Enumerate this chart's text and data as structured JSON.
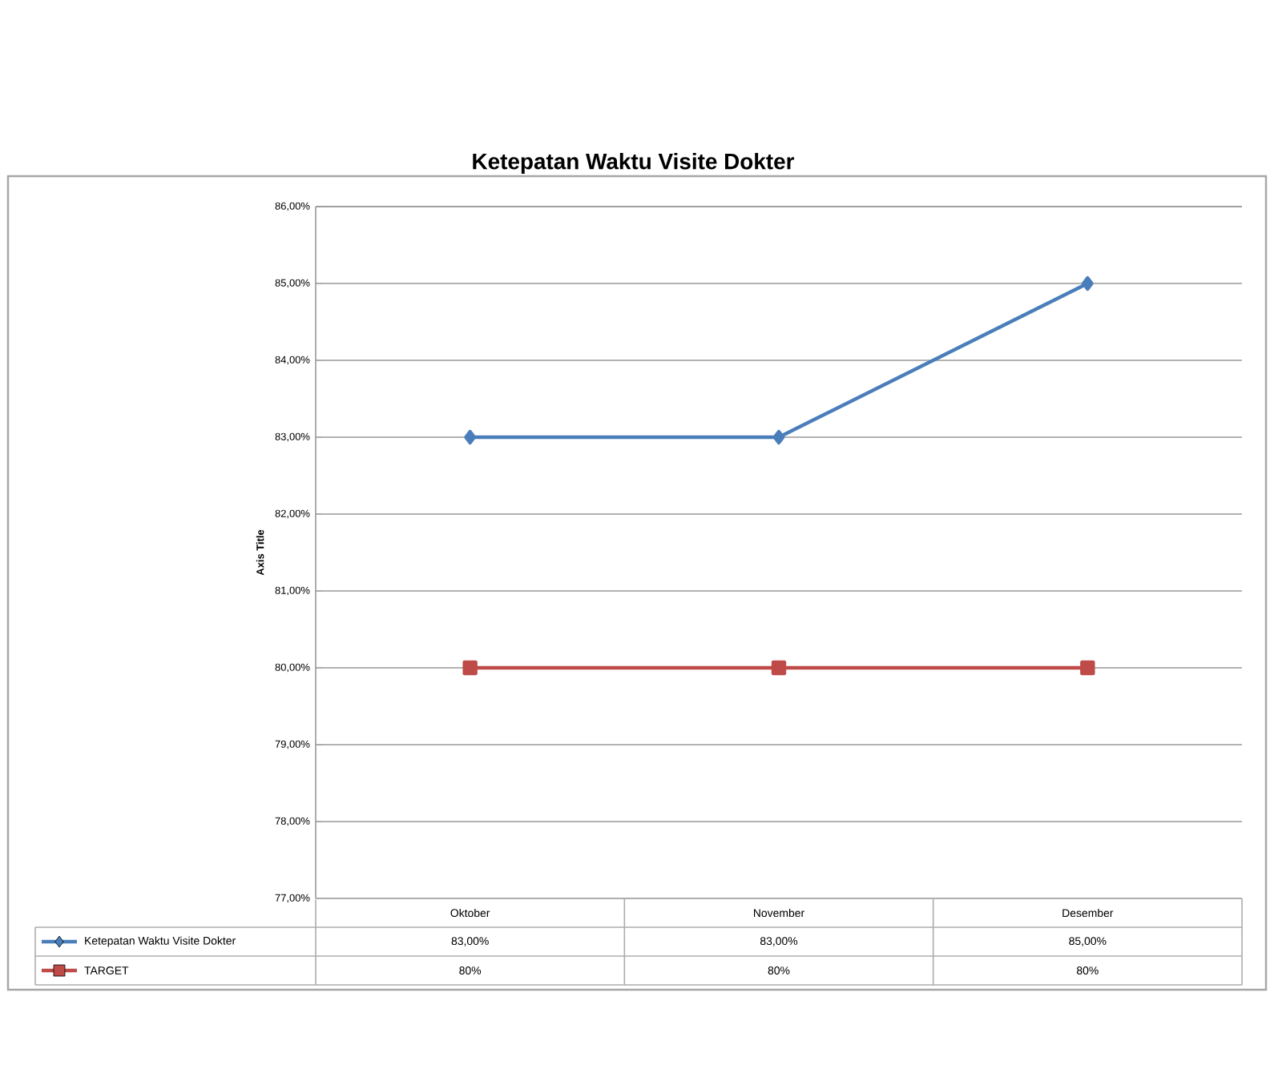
{
  "chart_data": {
    "type": "line",
    "title": "Ketepatan Waktu Visite Dokter",
    "ylabel": "Axis Title",
    "categories": [
      "Oktober",
      "November",
      "Desember"
    ],
    "series": [
      {
        "name": "Ketepatan Waktu Visite Dokter",
        "color": "#4a7ebb",
        "marker": "diamond",
        "values": [
          83,
          83,
          85
        ],
        "value_labels": [
          "83,00%",
          "83,00%",
          "85,00%"
        ]
      },
      {
        "name": "TARGET",
        "color": "#be4b48",
        "marker": "square",
        "values": [
          80,
          80,
          80
        ],
        "value_labels": [
          "80%",
          "80%",
          "80%"
        ]
      }
    ],
    "ylim": [
      77,
      86
    ],
    "yticks": [
      {
        "value": 77,
        "label": "77,00%"
      },
      {
        "value": 78,
        "label": "78,00%"
      },
      {
        "value": 79,
        "label": "79,00%"
      },
      {
        "value": 80,
        "label": "80,00%"
      },
      {
        "value": 81,
        "label": "81,00%"
      },
      {
        "value": 82,
        "label": "82,00%"
      },
      {
        "value": 83,
        "label": "83,00%"
      },
      {
        "value": 84,
        "label": "84,00%"
      },
      {
        "value": 85,
        "label": "85,00%"
      },
      {
        "value": 86,
        "label": "86,00%"
      }
    ],
    "grid": "y",
    "legend": "bottom"
  }
}
